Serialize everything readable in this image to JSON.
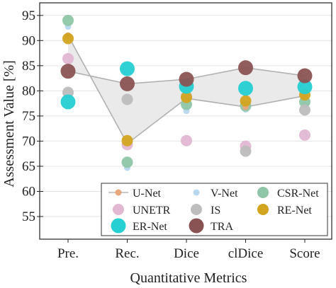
{
  "chart_data": {
    "type": "scatter",
    "xlabel": "Quantitative Metrics",
    "ylabel": "Assessment Value [%]",
    "categories": [
      "Pre.",
      "Rec.",
      "Dice",
      "clDice",
      "Score"
    ],
    "ylim": [
      50.5,
      97.5
    ],
    "yticks": [
      55,
      60,
      65,
      70,
      75,
      80,
      85,
      90,
      95
    ],
    "grid": "horizontal",
    "legend_position": "bottom-right",
    "shaded_band": {
      "between": [
        "U-Net",
        "TRA"
      ],
      "color": "#e8e8e8"
    },
    "series": [
      {
        "name": "U-Net",
        "marker": "line-dot",
        "color": "#e6a77e",
        "line_color": "#b5b5b5",
        "size": "small",
        "values": [
          91.0,
          69.5,
          78.5,
          76.8,
          79.0
        ]
      },
      {
        "name": "V-Net",
        "marker": "circle",
        "color": "#b8d8ee",
        "size": "small",
        "values": [
          92.8,
          64.7,
          76.0,
          76.3,
          77.2
        ]
      },
      {
        "name": "CSR-Net",
        "marker": "circle",
        "color": "#8fc6a8",
        "size": "medium",
        "values": [
          94.0,
          65.8,
          77.3,
          77.0,
          77.8
        ]
      },
      {
        "name": "UNETR",
        "marker": "circle",
        "color": "#e2b7d2",
        "size": "medium",
        "values": [
          86.4,
          69.3,
          70.1,
          69.0,
          71.2
        ]
      },
      {
        "name": "IS",
        "marker": "circle",
        "color": "#bdbdbd",
        "size": "medium",
        "values": [
          79.7,
          78.3,
          78.9,
          68.0,
          76.2
        ]
      },
      {
        "name": "RE-Net",
        "marker": "circle",
        "color": "#d3a420",
        "size": "medium",
        "values": [
          90.4,
          70.1,
          78.7,
          78.0,
          79.2
        ]
      },
      {
        "name": "ER-Net",
        "marker": "circle",
        "color": "#25cfd2",
        "size": "large",
        "values": [
          77.8,
          84.4,
          80.9,
          80.5,
          80.8
        ]
      },
      {
        "name": "TRA",
        "marker": "circle",
        "color": "#8a5353",
        "size": "large",
        "values": [
          83.9,
          81.4,
          82.3,
          84.6,
          83.0
        ]
      }
    ]
  }
}
